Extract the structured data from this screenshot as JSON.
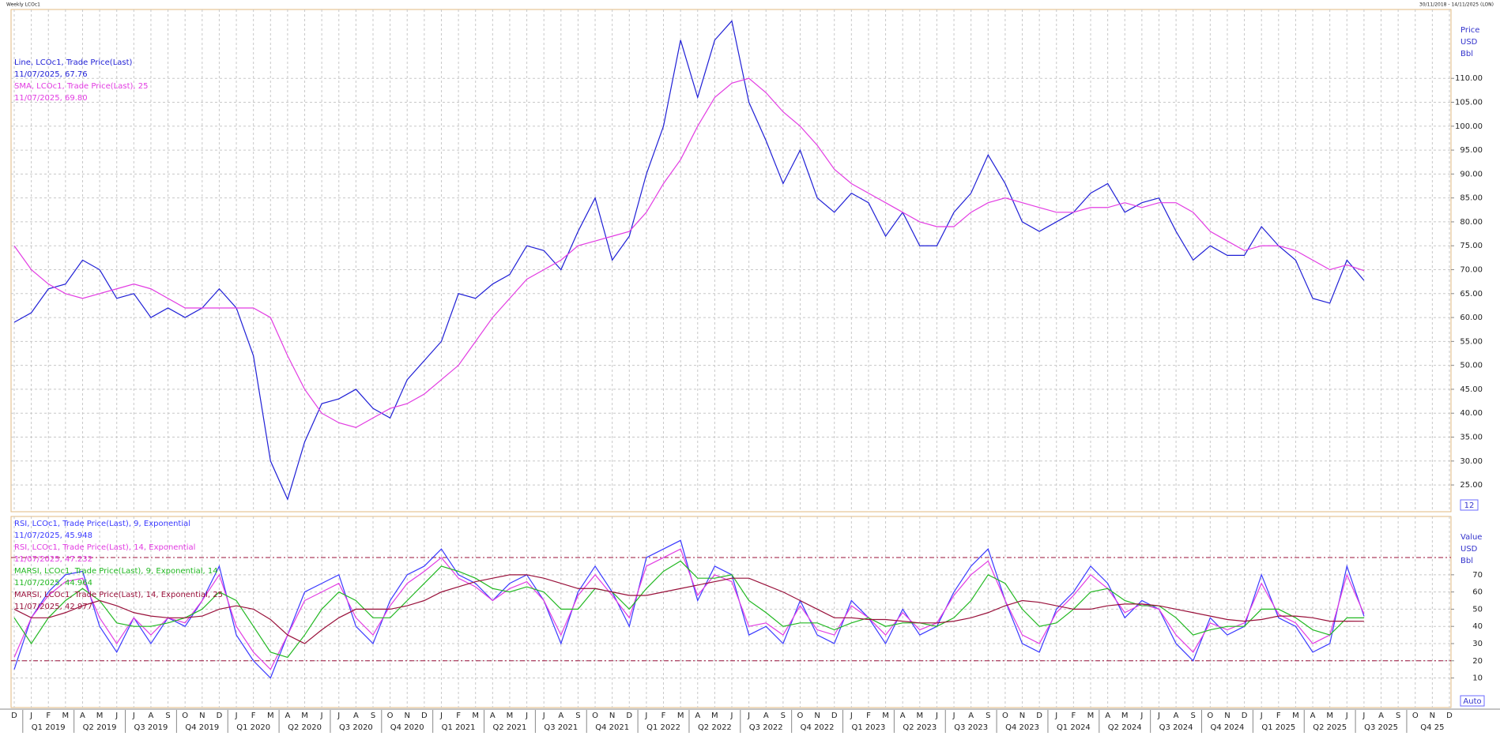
{
  "header": {
    "left": "Weekly LCOc1",
    "right": "30/11/2018 - 14/11/2025 (LON)"
  },
  "controls": {
    "price_box": "12",
    "value_box": "Auto"
  },
  "time_axis": {
    "months": [
      "D",
      "J",
      "F",
      "M",
      "A",
      "M",
      "J",
      "J",
      "A",
      "S",
      "O",
      "N",
      "D",
      "J",
      "F",
      "M",
      "A",
      "M",
      "J",
      "J",
      "A",
      "S",
      "O",
      "N",
      "D",
      "J",
      "F",
      "M",
      "A",
      "M",
      "J",
      "J",
      "A",
      "S",
      "O",
      "N",
      "D",
      "J",
      "F",
      "M",
      "A",
      "M",
      "J",
      "J",
      "A",
      "S",
      "O",
      "N",
      "D",
      "J",
      "F",
      "M",
      "A",
      "M",
      "J",
      "J",
      "A",
      "S",
      "O",
      "N",
      "D",
      "J",
      "F",
      "M",
      "A",
      "M",
      "J",
      "J",
      "A",
      "S",
      "O",
      "N",
      "D",
      "J",
      "F",
      "M",
      "A",
      "M",
      "J",
      "J",
      "A",
      "S",
      "O",
      "N",
      "D"
    ],
    "quarters": [
      "Q1 2019",
      "Q2 2019",
      "Q3 2019",
      "Q4 2019",
      "Q1 2020",
      "Q2 2020",
      "Q3 2020",
      "Q4 2020",
      "Q1 2021",
      "Q2 2021",
      "Q3 2021",
      "Q4 2021",
      "Q1 2022",
      "Q2 2022",
      "Q3 2022",
      "Q4 2022",
      "Q1 2023",
      "Q2 2023",
      "Q3 2023",
      "Q4 2023",
      "Q1 2024",
      "Q2 2024",
      "Q3 2024",
      "Q4 2024",
      "Q1 2025",
      "Q2 2025",
      "Q3 2025",
      "Q4 25"
    ]
  },
  "chart_data": [
    {
      "type": "line",
      "y_label": [
        "Price",
        "USD",
        "Bbl"
      ],
      "ylim": [
        19.4,
        124.4
      ],
      "grid": true,
      "yticks": [
        {
          "value": 25,
          "label": "25.00"
        },
        {
          "value": 30,
          "label": "30.00"
        },
        {
          "value": 35,
          "label": "35.00"
        },
        {
          "value": 40,
          "label": "40.00"
        },
        {
          "value": 45,
          "label": "45.00"
        },
        {
          "value": 50,
          "label": "50.00"
        },
        {
          "value": 55,
          "label": "55.00"
        },
        {
          "value": 60,
          "label": "60.00"
        },
        {
          "value": 65,
          "label": "65.00"
        },
        {
          "value": 70,
          "label": "70.00"
        },
        {
          "value": 75,
          "label": "75.00"
        },
        {
          "value": 80,
          "label": "80.00"
        },
        {
          "value": 85,
          "label": "85.00"
        },
        {
          "value": 90,
          "label": "90.00"
        },
        {
          "value": 95,
          "label": "95.00"
        },
        {
          "value": 100,
          "label": "100.00"
        },
        {
          "value": 105,
          "label": "105.00"
        },
        {
          "value": 110,
          "label": "110.00"
        }
      ],
      "series": [
        {
          "name": "Line, LCOc1, Trade Price(Last)",
          "last_label": "11/07/2025, 67.76",
          "color": "#1f1fd6",
          "values": [
            59,
            61,
            66,
            67,
            72,
            70,
            64,
            65,
            60,
            62,
            60,
            62,
            66,
            62,
            52,
            30,
            22,
            34,
            42,
            43,
            45,
            41,
            39,
            47,
            51,
            55,
            65,
            64,
            67,
            69,
            75,
            74,
            70,
            78,
            85,
            72,
            77,
            90,
            100,
            118,
            106,
            118,
            122,
            105,
            97,
            88,
            95,
            85,
            82,
            86,
            84,
            77,
            82,
            75,
            75,
            82,
            86,
            94,
            88,
            80,
            78,
            80,
            82,
            86,
            88,
            82,
            84,
            85,
            78,
            72,
            75,
            73,
            73,
            79,
            75,
            72,
            64,
            63,
            72,
            67.76
          ]
        },
        {
          "name": "SMA, LCOc1, Trade Price(Last),  25",
          "last_label": "11/07/2025, 69.80",
          "color": "#e23ce2",
          "values": [
            75,
            70,
            67,
            65,
            64,
            65,
            66,
            67,
            66,
            64,
            62,
            62,
            62,
            62,
            62,
            60,
            52,
            45,
            40,
            38,
            37,
            39,
            41,
            42,
            44,
            47,
            50,
            55,
            60,
            64,
            68,
            70,
            72,
            75,
            76,
            77,
            78,
            82,
            88,
            93,
            100,
            106,
            109,
            110,
            107,
            103,
            100,
            96,
            91,
            88,
            86,
            84,
            82,
            80,
            79,
            79,
            82,
            84,
            85,
            84,
            83,
            82,
            82,
            83,
            83,
            84,
            83,
            84,
            84,
            82,
            78,
            76,
            74,
            75,
            75,
            74,
            72,
            70,
            71,
            69.8
          ]
        }
      ]
    },
    {
      "type": "line",
      "y_label": [
        "Value",
        "USD",
        "Bbl"
      ],
      "ylim": [
        -7.2,
        103.9
      ],
      "grid": true,
      "yticks": [
        10,
        20,
        30,
        40,
        50,
        60,
        70
      ],
      "reference_lines": [
        80,
        20
      ],
      "series": [
        {
          "name": "RSI, LCOc1, Trade Price(Last),  9, Exponential",
          "last_label": "11/07/2025, 45.948",
          "color": "#3a3aff",
          "values": [
            15,
            45,
            60,
            70,
            72,
            40,
            25,
            45,
            30,
            45,
            40,
            55,
            75,
            35,
            20,
            10,
            35,
            60,
            65,
            70,
            40,
            30,
            55,
            70,
            75,
            85,
            70,
            65,
            55,
            65,
            70,
            55,
            30,
            60,
            75,
            60,
            40,
            80,
            85,
            90,
            55,
            75,
            70,
            35,
            40,
            30,
            55,
            35,
            30,
            55,
            45,
            30,
            50,
            35,
            40,
            60,
            75,
            85,
            55,
            30,
            25,
            50,
            60,
            75,
            65,
            45,
            55,
            50,
            30,
            20,
            45,
            35,
            40,
            70,
            45,
            40,
            25,
            30,
            75,
            45.948
          ]
        },
        {
          "name": "RSI, LCOc1, Trade Price(Last),  14, Exponential",
          "last_label": "11/07/2025, 47.232",
          "color": "#e23ce2",
          "values": [
            22,
            45,
            58,
            66,
            68,
            45,
            30,
            45,
            35,
            45,
            42,
            55,
            70,
            40,
            25,
            15,
            35,
            55,
            60,
            65,
            45,
            35,
            52,
            65,
            72,
            80,
            68,
            63,
            55,
            62,
            66,
            55,
            35,
            58,
            70,
            58,
            45,
            75,
            80,
            85,
            58,
            70,
            66,
            40,
            42,
            35,
            52,
            38,
            35,
            52,
            45,
            35,
            48,
            38,
            42,
            58,
            70,
            78,
            55,
            35,
            30,
            48,
            58,
            70,
            62,
            48,
            53,
            50,
            35,
            25,
            42,
            38,
            42,
            65,
            47,
            42,
            30,
            35,
            70,
            47.232
          ]
        },
        {
          "name": "MARSI, LCOc1, Trade Price(Last),  9, Exponential, 14",
          "last_label": "11/07/2025, 44.964",
          "color": "#22b822",
          "values": [
            45,
            30,
            45,
            55,
            62,
            55,
            42,
            40,
            40,
            42,
            45,
            50,
            60,
            55,
            40,
            25,
            22,
            35,
            50,
            60,
            55,
            45,
            45,
            55,
            65,
            75,
            72,
            68,
            62,
            60,
            63,
            60,
            50,
            50,
            62,
            60,
            50,
            62,
            72,
            78,
            68,
            68,
            70,
            55,
            48,
            40,
            42,
            42,
            38,
            42,
            45,
            40,
            42,
            42,
            40,
            45,
            55,
            70,
            65,
            50,
            40,
            42,
            50,
            60,
            62,
            55,
            52,
            52,
            45,
            35,
            38,
            40,
            40,
            50,
            50,
            45,
            38,
            35,
            45,
            44.964
          ]
        },
        {
          "name": "MARSI, LCOc1, Trade Price(Last),  14, Exponential, 25",
          "last_label": "11/07/2025, 42.977",
          "color": "#99103a",
          "values": [
            50,
            45,
            45,
            48,
            52,
            55,
            52,
            48,
            46,
            45,
            45,
            46,
            50,
            52,
            50,
            44,
            35,
            30,
            38,
            45,
            50,
            50,
            50,
            52,
            55,
            60,
            63,
            66,
            68,
            70,
            70,
            68,
            65,
            62,
            62,
            60,
            58,
            58,
            60,
            62,
            64,
            66,
            68,
            68,
            64,
            60,
            55,
            50,
            45,
            45,
            44,
            44,
            43,
            42,
            42,
            43,
            45,
            48,
            52,
            55,
            54,
            52,
            50,
            50,
            52,
            53,
            53,
            52,
            50,
            48,
            46,
            44,
            43,
            44,
            46,
            46,
            45,
            43,
            43,
            42.977
          ]
        }
      ]
    }
  ]
}
